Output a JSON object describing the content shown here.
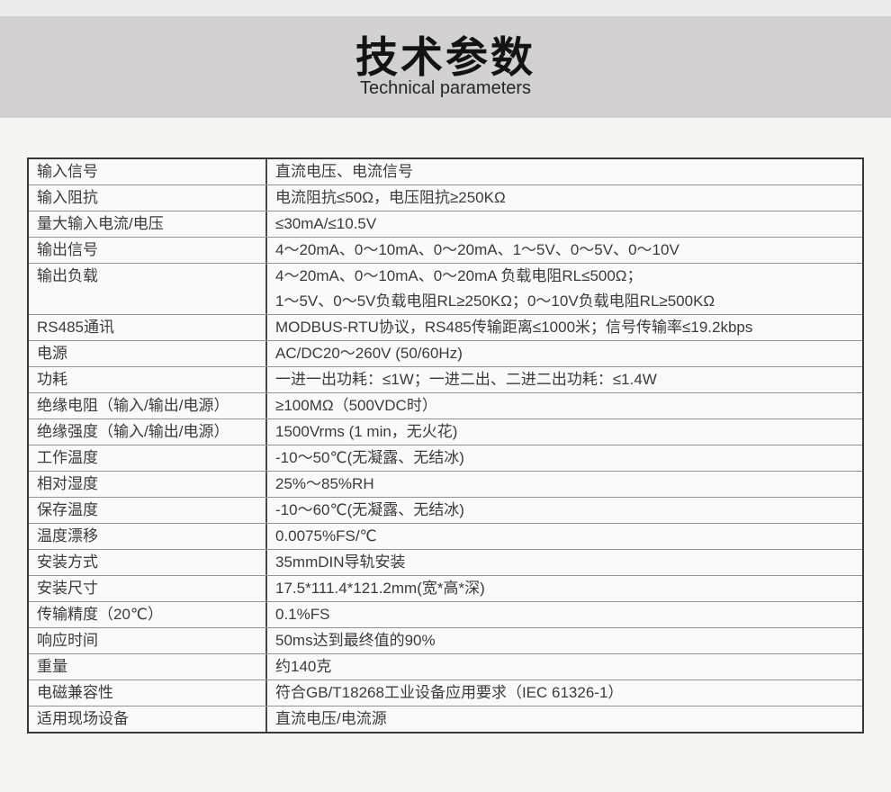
{
  "header": {
    "title": "技术参数",
    "subtitle": "Technical parameters"
  },
  "colors": {
    "page_background": "#f5f5f4",
    "top_strip": "#ebebeb",
    "title_band": "#d2d0d0",
    "table_background": "#fafafa",
    "table_outer_border": "#3a3835",
    "table_inner_line": "#929292",
    "text": "#3e3a39"
  },
  "table": {
    "rows": [
      {
        "label": "输入信号",
        "value": "直流电压、电流信号"
      },
      {
        "label": "输入阻抗",
        "value": "电流阻抗≤50Ω，电压阻抗≥250KΩ"
      },
      {
        "label": "量大输入电流/电压",
        "value": "≤30mA/≤10.5V"
      },
      {
        "label": "输出信号",
        "value": "4～20mA、0～10mA、0～20mA、1～5V、0～5V、0～10V"
      },
      {
        "label": "输出负载",
        "value_lines": [
          "4～20mA、0～10mA、0～20mA 负载电阻RL≤500Ω；",
          "1～5V、0～5V负载电阻RL≥250KΩ；0～10V负载电阻RL≥500KΩ"
        ]
      },
      {
        "label": "RS485通讯",
        "value": "MODBUS-RTU协议，RS485传输距离≤1000米；信号传输率≤19.2kbps"
      },
      {
        "label": "电源",
        "value": "AC/DC20～260V (50/60Hz)"
      },
      {
        "label": "功耗",
        "value": "一进一出功耗：≤1W；一进二出、二进二出功耗：≤1.4W"
      },
      {
        "label": "绝缘电阻（输入/输出/电源）",
        "value": "≥100MΩ（500VDC时）"
      },
      {
        "label": "绝缘强度（输入/输出/电源）",
        "value": "1500Vrms (1 min，无火花)"
      },
      {
        "label": "工作温度",
        "value": "-10～50℃(无凝露、无结冰)"
      },
      {
        "label": "相对湿度",
        "value": "25%～85%RH"
      },
      {
        "label": "保存温度",
        "value": "-10～60℃(无凝露、无结冰)"
      },
      {
        "label": "温度漂移",
        "value": "0.0075%FS/℃"
      },
      {
        "label": "安装方式",
        "value": "35mmDIN导轨安装"
      },
      {
        "label": "安装尺寸",
        "value": "17.5*111.4*121.2mm(宽*高*深)"
      },
      {
        "label": "传输精度（20℃）",
        "value": "0.1%FS"
      },
      {
        "label": "响应时间",
        "value": "50ms达到最终值的90%"
      },
      {
        "label": "重量",
        "value": "约140克"
      },
      {
        "label": "电磁兼容性",
        "value": "符合GB/T18268工业设备应用要求（IEC 61326-1）"
      },
      {
        "label": "适用现场设备",
        "value": "直流电压/电流源"
      }
    ]
  }
}
